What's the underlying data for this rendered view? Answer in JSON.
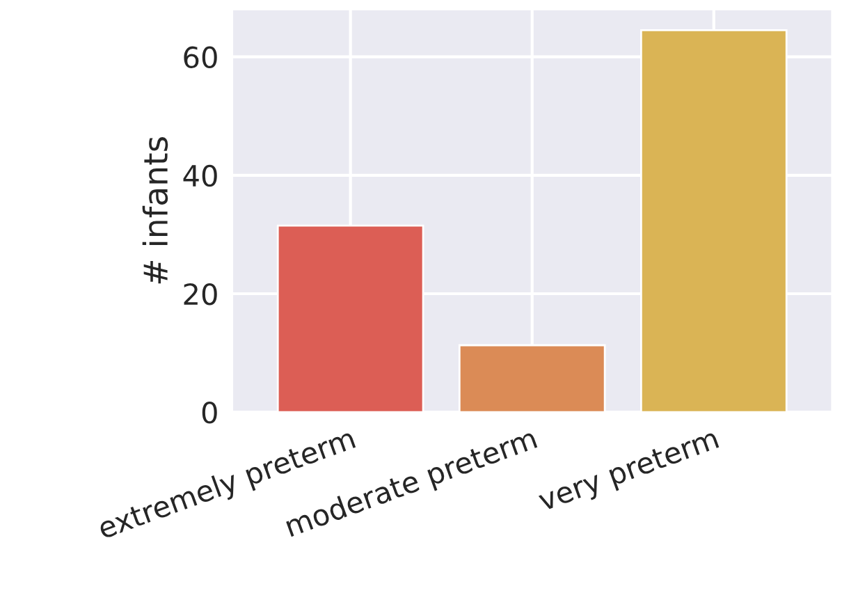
{
  "chart_data": {
    "type": "bar",
    "ylabel": "# infants",
    "categories": [
      "extremely preterm",
      "moderate preterm",
      "very preterm"
    ],
    "values": [
      31.5,
      11.3,
      64.5
    ],
    "colors": [
      "#dc5e55",
      "#db8b56",
      "#dab455"
    ],
    "ylim": [
      0,
      68
    ],
    "yticks": [
      0,
      20,
      40,
      60
    ],
    "grid": true
  }
}
